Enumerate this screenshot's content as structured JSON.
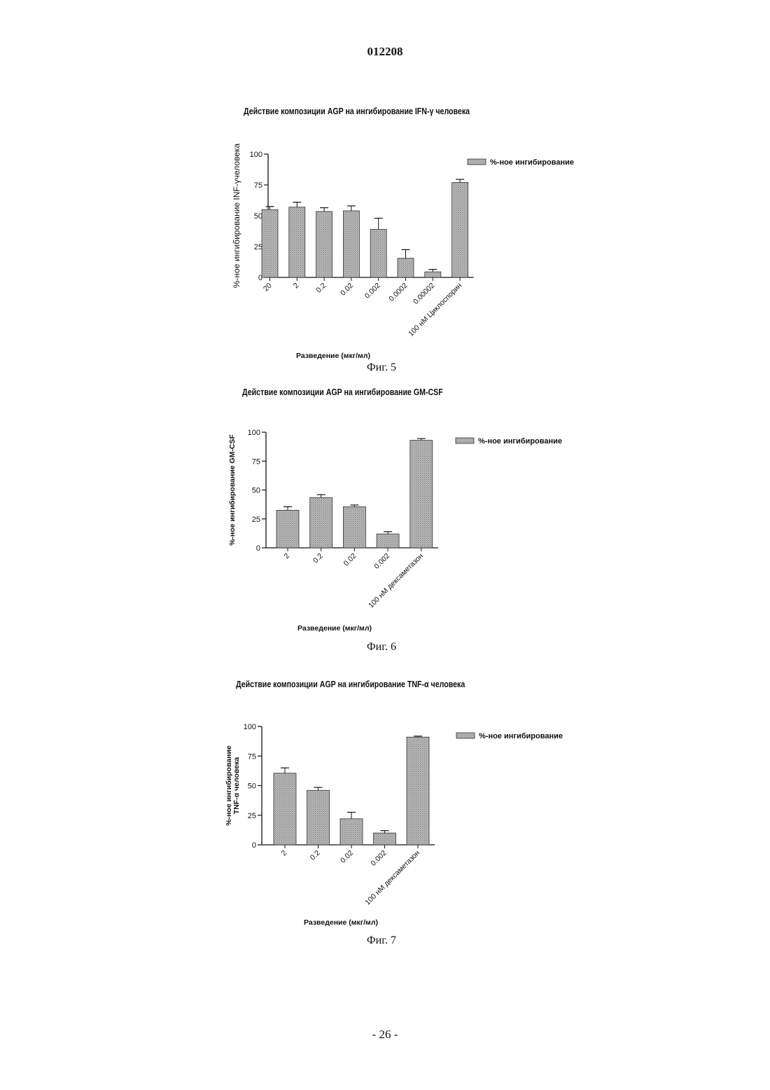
{
  "header": {
    "doc_number": "012208"
  },
  "footer": {
    "page_number": "- 26 -"
  },
  "colors": {
    "bar_fill": "#b8b8b8",
    "axis": "#111111"
  },
  "chart_data": [
    {
      "type": "bar",
      "title": "Действие композиции AGP на ингибирование IFN-γ человека",
      "ylabel": "%-ное ингибирование INF-γчеловека",
      "xlabel": "Разведение (мкг/мл)",
      "caption": "Фиг. 5",
      "legend": "%-ное ингибирование",
      "legend_position": "top-right",
      "ylim": [
        0,
        100
      ],
      "yticks": [
        "0",
        "25",
        "50",
        "75",
        "100"
      ],
      "categories": [
        "20",
        "2",
        "0.2",
        "0.02",
        "0.002",
        "0.0002",
        "0.00002",
        "100 нМ Циклоспорин"
      ],
      "series": [
        {
          "values": [
            55,
            57,
            53.5,
            54,
            39,
            15.5,
            4.5,
            77
          ],
          "errors": [
            2.5,
            4,
            3,
            4,
            9,
            7,
            2,
            2.5
          ]
        }
      ]
    },
    {
      "type": "bar",
      "title": "Действие композиции AGP на ингибирование GM-CSF",
      "ylabel": "%-ное ингибирование GM-CSF",
      "xlabel": "Разведение (мкг/мл)",
      "caption": "Фиг. 6",
      "legend": "%-ное ингибирование",
      "legend_position": "top-right",
      "ylim": [
        0,
        100
      ],
      "yticks": [
        "0",
        "25",
        "50",
        "75",
        "100"
      ],
      "categories": [
        "2",
        "0.2",
        "0.02",
        "0.002",
        "100 нМ дексаметазон"
      ],
      "series": [
        {
          "values": [
            32.5,
            43.5,
            35.5,
            12,
            93
          ],
          "errors": [
            3,
            2.5,
            1.5,
            2,
            1.5
          ]
        }
      ]
    },
    {
      "type": "bar",
      "title": "Действие композиции AGP на ингибирование TNF-α человека",
      "ylabel_lines": [
        "%-ное ингибирование",
        "TNF-α человека"
      ],
      "xlabel": "Разведение (мкг/мл)",
      "caption": "Фиг. 7",
      "legend": "%-ное ингибирование",
      "legend_position": "top-right",
      "ylim": [
        0,
        100
      ],
      "yticks": [
        "0",
        "25",
        "50",
        "75",
        "100"
      ],
      "categories": [
        "2",
        "0.2",
        "0.02",
        "0.002",
        "100 нМ дексаметазон"
      ],
      "series": [
        {
          "values": [
            60.5,
            46,
            22,
            10,
            91
          ],
          "errors": [
            4.5,
            2.5,
            5.5,
            2,
            0.8
          ]
        }
      ]
    }
  ]
}
